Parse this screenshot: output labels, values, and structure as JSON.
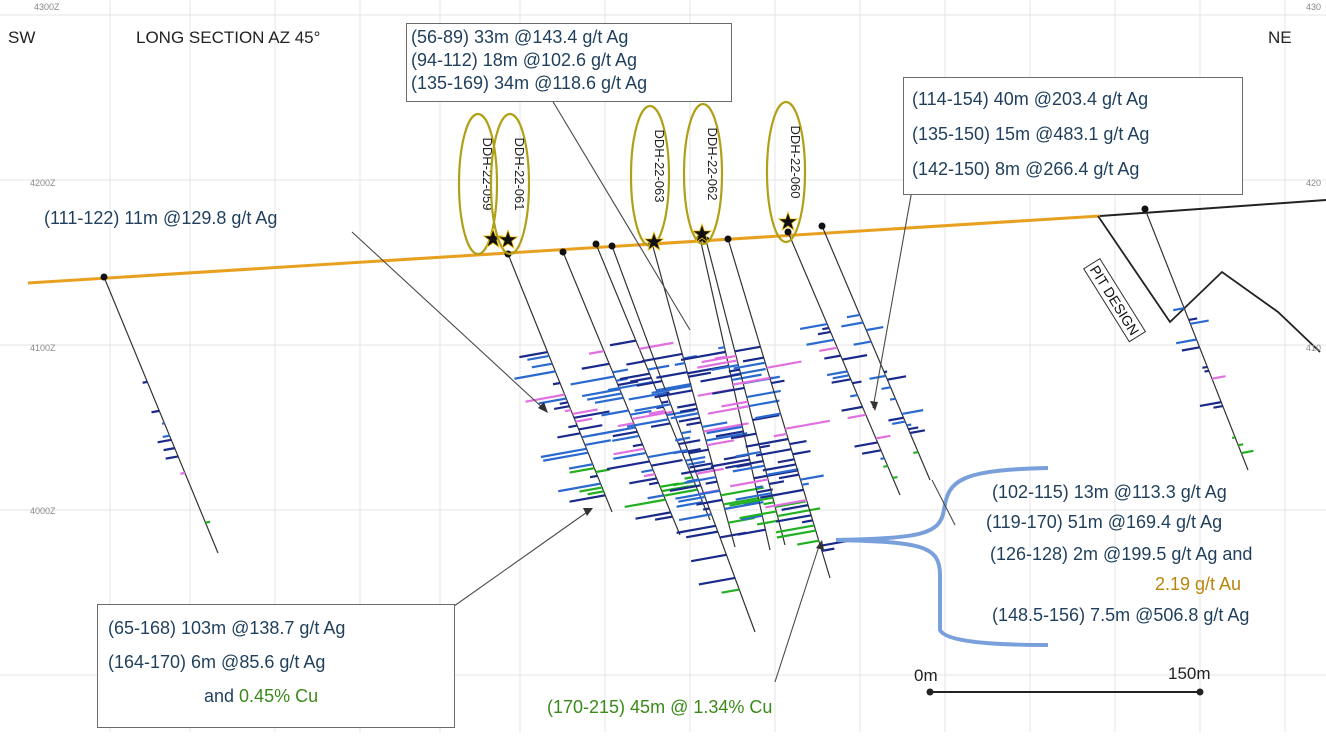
{
  "header": {
    "sw": "SW",
    "title": "LONG SECTION AZ 45°",
    "ne": "NE"
  },
  "elevations": {
    "top": "4300Z",
    "z4200": "4200Z",
    "z4100": "4100Z",
    "z4000": "4000Z",
    "right_4300": "430",
    "right_4200": "420",
    "right_4100": "410"
  },
  "drill_holes": [
    "DDH-22-059",
    "DDH-22-061",
    "DDH-22-063",
    "DDH-22-062",
    "DDH-22-060"
  ],
  "pit_label": "PIT DESIGN",
  "intercepts": {
    "top_center": [
      "(56-89) 33m @143.4 g/t Ag",
      "(94-112) 18m @102.6 g/t Ag",
      "(135-169) 34m @118.6 g/t Ag"
    ],
    "top_right": [
      "(114-154) 40m @203.4 g/t Ag",
      "(135-150) 15m @483.1 g/t Ag",
      "(142-150) 8m @266.4 g/t Ag"
    ],
    "left": "(111-122) 11m @129.8 g/t Ag",
    "bottom_left": {
      "line1": "(65-168) 103m @138.7 g/t Ag",
      "line2": "(164-170) 6m @85.6 g/t Ag",
      "line3_prefix": "and ",
      "line3_cu": "0.45% Cu"
    },
    "bottom_center": "(170-215) 45m @ 1.34% Cu",
    "right": {
      "line1": "(102-115) 13m @113.3 g/t Ag",
      "line2": "(119-170) 51m @169.4 g/t Ag",
      "line3": "(126-128) 2m @199.5 g/t Ag and",
      "line4": "2.19 g/t Au",
      "line5": "(148.5-156) 7.5m @506.8 g/t Ag"
    }
  },
  "scale_bar": {
    "start": "0m",
    "end": "150m"
  },
  "colors": {
    "topography": "#e8a020",
    "silver": "#1a2a8a",
    "silver_light": "#2a6ad0",
    "copper": "#22b022",
    "gold_text": "#b8860b",
    "copper_text": "#3a8a1a",
    "bracket": "#7aa0dc",
    "hole_ellipse": "#b0a018"
  }
}
